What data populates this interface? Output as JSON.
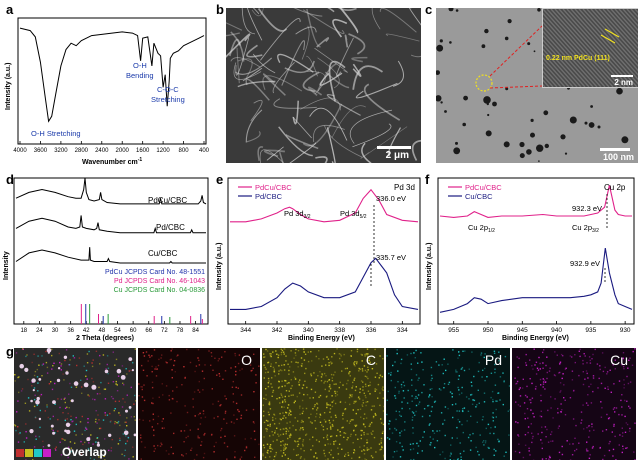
{
  "panel_labels": {
    "a": "a",
    "b": "b",
    "c": "c",
    "d": "d",
    "e": "e",
    "f": "f",
    "g": "g"
  },
  "colors": {
    "pdcu": "#e0218a",
    "pd": "#1a1a80",
    "cu": "#1a1a80",
    "pdcu_card": "#2233aa",
    "pd_card": "#e0218a",
    "cu_card": "#2a9a3a",
    "bond_label": "#1a3aaa"
  },
  "sem": {
    "scale_bar": "2 μm"
  },
  "tem": {
    "scale_bar": "100 nm",
    "inset_scale_bar": "2 nm",
    "lattice_label": "0.22 nm PdCu (111)"
  },
  "eds": {
    "overlap_label": "Overlap",
    "maps": [
      {
        "label": "O",
        "tint": "#c03030"
      },
      {
        "label": "C",
        "tint": "#c8c020"
      },
      {
        "label": "Pd",
        "tint": "#20c8c8"
      },
      {
        "label": "Cu",
        "tint": "#c820c8"
      }
    ]
  },
  "chart_data": [
    {
      "id": "a",
      "type": "line",
      "xlabel": "Wavenumber (cm⁻¹)",
      "ylabel": "Intensity (a.u.)",
      "xlim": [
        4000,
        400
      ],
      "xticks": [
        4000,
        3600,
        3200,
        2800,
        2400,
        2000,
        1600,
        1200,
        800,
        400
      ],
      "annotations": [
        "O-H Stretching",
        "O-H Bending",
        "C-O-C Stretching"
      ],
      "series": [
        {
          "x": [
            4000,
            3800,
            3700,
            3600,
            3500,
            3440,
            3380,
            3300,
            3200,
            3100,
            3000,
            2900,
            2800,
            2600,
            2400,
            2200,
            2000,
            1800,
            1700,
            1640,
            1600,
            1500,
            1420,
            1380,
            1300,
            1250,
            1200,
            1160,
            1120,
            1080,
            1060,
            1000,
            900,
            800,
            700,
            600,
            500,
            400
          ],
          "y": [
            0.92,
            0.9,
            0.85,
            0.65,
            0.35,
            0.18,
            0.22,
            0.4,
            0.62,
            0.75,
            0.8,
            0.78,
            0.82,
            0.86,
            0.87,
            0.88,
            0.89,
            0.88,
            0.86,
            0.66,
            0.84,
            0.85,
            0.62,
            0.8,
            0.72,
            0.7,
            0.45,
            0.55,
            0.3,
            0.5,
            0.68,
            0.72,
            0.74,
            0.78,
            0.8,
            0.82,
            0.84,
            0.86
          ]
        }
      ]
    },
    {
      "id": "d",
      "type": "line",
      "xlabel": "2 Theta (degrees)",
      "ylabel": "Intensity",
      "xlim": [
        15,
        88
      ],
      "xticks": [
        18,
        24,
        30,
        36,
        42,
        48,
        54,
        60,
        66,
        72,
        78,
        84
      ],
      "series": [
        {
          "name": "PdCu/CBC",
          "x": [
            15,
            20,
            25,
            30,
            35,
            38,
            40,
            41,
            41.5,
            42,
            43,
            45,
            47,
            47.5,
            48,
            50,
            55,
            60,
            65,
            70,
            70.5,
            71,
            75,
            80,
            85,
            86,
            86.5,
            87,
            88
          ],
          "y": [
            0.86,
            0.9,
            0.92,
            0.9,
            0.87,
            0.86,
            0.86,
            0.92,
            1.0,
            0.9,
            0.85,
            0.84,
            0.85,
            0.9,
            0.85,
            0.83,
            0.82,
            0.82,
            0.82,
            0.82,
            0.86,
            0.82,
            0.82,
            0.82,
            0.82,
            0.84,
            0.88,
            0.83,
            0.82
          ]
        },
        {
          "name": "Pd/CBC",
          "x": [
            15,
            20,
            25,
            30,
            35,
            38,
            39.5,
            40,
            40.5,
            42,
            45,
            46,
            46.5,
            47,
            50,
            55,
            60,
            65,
            68,
            68.5,
            69,
            75,
            80,
            82,
            82.5,
            83,
            85,
            88
          ],
          "y": [
            0.65,
            0.7,
            0.72,
            0.7,
            0.66,
            0.65,
            0.66,
            0.74,
            0.66,
            0.65,
            0.64,
            0.65,
            0.69,
            0.64,
            0.63,
            0.62,
            0.62,
            0.62,
            0.62,
            0.65,
            0.62,
            0.62,
            0.62,
            0.62,
            0.64,
            0.62,
            0.62,
            0.62
          ]
        },
        {
          "name": "Cu/CBC",
          "x": [
            15,
            20,
            25,
            30,
            35,
            40,
            43,
            43.3,
            43.6,
            45,
            50,
            50.5,
            51,
            55,
            60,
            65,
            70,
            74,
            74.5,
            75,
            80,
            85,
            88
          ],
          "y": [
            0.42,
            0.48,
            0.5,
            0.48,
            0.45,
            0.43,
            0.43,
            0.52,
            0.43,
            0.42,
            0.42,
            0.44,
            0.42,
            0.41,
            0.41,
            0.41,
            0.41,
            0.41,
            0.42,
            0.41,
            0.41,
            0.41,
            0.41
          ]
        }
      ],
      "reference_cards": [
        {
          "name": "PdCu JCPDS Card No. 48-1551",
          "color": "#2233aa",
          "peaks": [
            {
              "x": 41.8,
              "h": 0.2
            },
            {
              "x": 48.5,
              "h": 0.08
            },
            {
              "x": 71.0,
              "h": 0.08
            },
            {
              "x": 86.0,
              "h": 0.1
            }
          ]
        },
        {
          "name": "Pd JCPDS Card No. 46-1043",
          "color": "#e0218a",
          "peaks": [
            {
              "x": 40.1,
              "h": 0.2
            },
            {
              "x": 46.7,
              "h": 0.1
            },
            {
              "x": 68.1,
              "h": 0.08
            },
            {
              "x": 82.1,
              "h": 0.08
            },
            {
              "x": 86.6,
              "h": 0.05
            }
          ]
        },
        {
          "name": "Cu JCPDS Card No. 04-0836",
          "color": "#2a9a3a",
          "peaks": [
            {
              "x": 43.3,
              "h": 0.2
            },
            {
              "x": 50.4,
              "h": 0.1
            },
            {
              "x": 74.1,
              "h": 0.07
            }
          ]
        }
      ]
    },
    {
      "id": "e",
      "type": "line",
      "title": "Pd 3d",
      "xlabel": "Binding Energy (eV)",
      "ylabel": "Intensity (a.u.)",
      "xlim": [
        345,
        333
      ],
      "xticks": [
        344,
        342,
        340,
        338,
        336,
        334
      ],
      "annotations": [
        "Pd 3d3/2",
        "Pd 3d5/2",
        "336.0 eV",
        "335.7 eV"
      ],
      "series": [
        {
          "name": "PdCu/CBC",
          "x": [
            345,
            344,
            343,
            342,
            341.5,
            341.2,
            341,
            340.5,
            340,
            339,
            338,
            337,
            336.5,
            336,
            335.5,
            335,
            334,
            333
          ],
          "y": [
            0.7,
            0.7,
            0.72,
            0.76,
            0.79,
            0.8,
            0.79,
            0.75,
            0.72,
            0.7,
            0.71,
            0.76,
            0.86,
            0.92,
            0.85,
            0.75,
            0.71,
            0.7
          ]
        },
        {
          "name": "Pd/CBC",
          "x": [
            345,
            344,
            343,
            342,
            341.5,
            341,
            340.5,
            340,
            339,
            338,
            337,
            336.5,
            336,
            335.7,
            335,
            334.5,
            334,
            333
          ],
          "y": [
            0.1,
            0.1,
            0.12,
            0.18,
            0.24,
            0.28,
            0.26,
            0.22,
            0.18,
            0.18,
            0.22,
            0.32,
            0.42,
            0.45,
            0.35,
            0.2,
            0.12,
            0.1
          ]
        }
      ]
    },
    {
      "id": "f",
      "type": "line",
      "title": "Cu 2p",
      "xlabel": "Binding Energy (eV)",
      "ylabel": "Intensity (a.u.)",
      "xlim": [
        957,
        929
      ],
      "xticks": [
        955,
        950,
        945,
        940,
        935,
        930
      ],
      "annotations": [
        "Cu 2p1/2",
        "Cu 2p3/2",
        "932.3 eV",
        "932.9 eV"
      ],
      "series": [
        {
          "name": "PdCu/CBC",
          "x": [
            957,
            955,
            953,
            952,
            951,
            950,
            948,
            945,
            942,
            940,
            938,
            936,
            935,
            934,
            933,
            932.3,
            931.5,
            931,
            930,
            929
          ],
          "y": [
            0.74,
            0.73,
            0.74,
            0.77,
            0.75,
            0.73,
            0.74,
            0.74,
            0.75,
            0.74,
            0.74,
            0.74,
            0.75,
            0.76,
            0.8,
            0.95,
            0.78,
            0.75,
            0.74,
            0.74
          ]
        },
        {
          "name": "Cu/CBC",
          "x": [
            957,
            955,
            953,
            952,
            951,
            950,
            948,
            945,
            942,
            940,
            938,
            936,
            935,
            934,
            933.5,
            932.9,
            932.3,
            931.5,
            931,
            930,
            929
          ],
          "y": [
            0.08,
            0.1,
            0.14,
            0.18,
            0.17,
            0.14,
            0.16,
            0.18,
            0.18,
            0.18,
            0.18,
            0.19,
            0.2,
            0.22,
            0.28,
            0.52,
            0.35,
            0.2,
            0.14,
            0.12,
            0.1
          ]
        }
      ]
    }
  ],
  "text": {
    "a_xlabel_main": "Wavenumber cm",
    "a_xlabel_sup": "-1",
    "a_ylabel": "Intensity (a.u.)",
    "a_ann1": "O-H Stretching",
    "a_ann2a": "O-H",
    "a_ann2b": "Bending",
    "a_ann3a": "C-O-C",
    "a_ann3b": "Stretching",
    "d_xlabel": "2 Theta (degrees)",
    "d_ylabel": "Intensity",
    "d_s1": "PdCu/CBC",
    "d_s2": "Pd/CBC",
    "d_s3": "Cu/CBC",
    "d_c1": "PdCu JCPDS Card No. 48-1551",
    "d_c2": "Pd JCPDS Card No. 46-1043",
    "d_c3": "Cu JCPDS Card No. 04-0836",
    "e_xlabel": "Binding Energy (eV)",
    "e_ylabel": "Intensity (a.u.)",
    "e_leg1": "PdCu/CBC",
    "e_leg2": "Pd/CBC",
    "e_title": "Pd 3d",
    "e_ann_a": "Pd 3d",
    "e_ann_a_sub": "3/2",
    "e_ann_b": "Pd 3d",
    "e_ann_b_sub": "5/2",
    "e_v1": "336.0 eV",
    "e_v2": "335.7 eV",
    "f_xlabel": "Binding Energy (eV)",
    "f_ylabel": "Intensity (a.u.)",
    "f_leg1": "PdCu/CBC",
    "f_leg2": "Cu/CBC",
    "f_title": "Cu 2p",
    "f_ann_a": "Cu 2p",
    "f_ann_a_sub": "1/2",
    "f_ann_b": "Cu 2p",
    "f_ann_b_sub": "3/2",
    "f_v1": "932.3 eV",
    "f_v2": "932.9 eV"
  }
}
